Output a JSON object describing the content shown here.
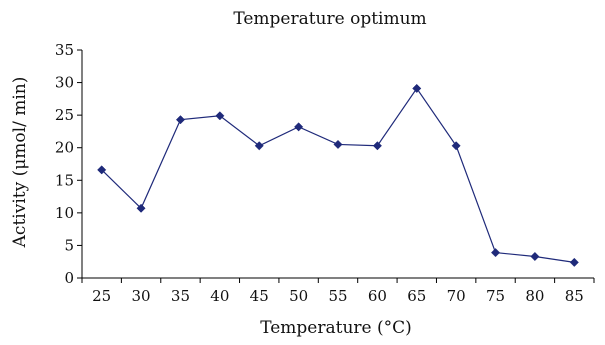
{
  "chart_data": {
    "type": "line",
    "title": "Temperature optimum",
    "xlabel": "Temperature (°C)",
    "ylabel": "Activity (μmol/ min)",
    "categories": [
      "25",
      "30",
      "35",
      "40",
      "45",
      "50",
      "55",
      "60",
      "65",
      "70",
      "75",
      "80",
      "85"
    ],
    "series": [
      {
        "values": [
          16.6,
          10.7,
          24.3,
          24.9,
          20.3,
          23.2,
          20.5,
          20.3,
          29.1,
          20.3,
          3.9,
          3.3,
          2.4
        ]
      }
    ],
    "ylim": [
      0,
      35
    ],
    "yticks": [
      0,
      5,
      10,
      15,
      20,
      25,
      30,
      35
    ],
    "grid": false,
    "legend": "none",
    "colors": {
      "series": "#1f2a7a",
      "axis": "#000000"
    },
    "marker": "diamond"
  }
}
